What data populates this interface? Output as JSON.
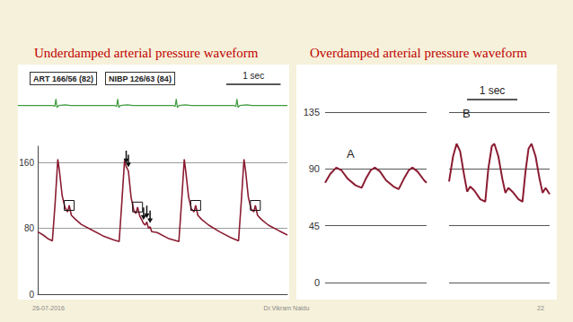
{
  "footer": {
    "date": "26-07-2016",
    "author": "Dr.Vikram Naidu",
    "page": "22"
  },
  "chart_data": [
    {
      "type": "line",
      "title": "Underdamped arterial pressure waveform",
      "annotations": [
        "ART 166/56 (82)",
        "NIBP 126/63 (84)",
        "1 sec"
      ],
      "x": [
        0,
        0.1,
        0.2,
        0.27,
        0.32,
        0.37,
        0.4,
        0.45,
        0.5,
        0.55,
        0.58,
        0.62,
        0.68,
        0.8,
        1.0,
        1.2,
        1.4,
        1.5,
        1.55,
        1.6,
        1.63,
        1.67,
        1.72,
        1.77,
        1.81,
        1.84,
        1.88,
        1.92,
        1.95,
        1.98,
        2.01,
        2.04,
        2.07,
        2.1,
        2.2,
        2.4,
        2.6,
        2.65,
        2.7,
        2.73,
        2.78,
        2.83,
        2.88,
        2.91,
        2.95,
        3.02,
        3.15,
        3.35,
        3.55,
        3.7,
        3.75,
        3.8,
        3.83,
        3.88,
        3.93,
        3.98,
        4.01,
        4.05,
        4.12,
        4.25,
        4.45,
        4.6
      ],
      "values": [
        76,
        72,
        67,
        65,
        110,
        164,
        150,
        120,
        106,
        100,
        108,
        96,
        92,
        85,
        78,
        71,
        66,
        64,
        112,
        163,
        155,
        150,
        118,
        102,
        98,
        106,
        95,
        90,
        86,
        84,
        88,
        80,
        82,
        76,
        75,
        68,
        64,
        112,
        164,
        148,
        118,
        104,
        100,
        108,
        96,
        91,
        84,
        76,
        69,
        65,
        112,
        164,
        150,
        118,
        104,
        100,
        108,
        96,
        91,
        84,
        77,
        72
      ],
      "color": "#8b1c32",
      "boxed_x": [
        0.58,
        1.84,
        2.91,
        4.01
      ],
      "arrow_x": [
        1.63,
        1.67,
        1.95,
        2.01,
        2.07
      ],
      "xlim": [
        0,
        4.6
      ],
      "ylim": [
        0,
        180
      ],
      "yticks": [
        0,
        80,
        160
      ],
      "grid": true,
      "tick_labels": "y"
    },
    {
      "type": "line",
      "x": [
        -0.37,
        0.28,
        0.31,
        0.33,
        0.35,
        0.38,
        0.5,
        0.6,
        1.42,
        1.45,
        1.47,
        1.49,
        1.52,
        1.65,
        1.75,
        2.5,
        2.53,
        2.55,
        2.57,
        2.6,
        2.72,
        2.82,
        3.62,
        3.65,
        3.67,
        3.69,
        3.72,
        3.85,
        3.95,
        4.6
      ],
      "values": [
        0,
        0,
        -0.15,
        1,
        -0.3,
        0,
        0.1,
        0,
        0,
        -0.15,
        1,
        -0.3,
        0,
        0.1,
        0,
        0,
        -0.15,
        1,
        -0.3,
        0,
        0.1,
        0,
        0,
        -0.15,
        1,
        -0.3,
        0,
        0.1,
        0,
        0
      ],
      "color": "#3f9a3f",
      "xlim": [
        -0.37,
        4.6
      ],
      "ylim": [
        -1,
        2
      ],
      "tick_labels": false
    },
    {
      "type": "line",
      "title": "Overdamped arterial pressure waveform",
      "annotations": [
        "1 sec"
      ],
      "panels": [
        {
          "label": "A",
          "x": [
            0,
            0.1,
            0.22,
            0.32,
            0.45,
            0.6,
            0.72,
            0.8,
            0.9,
            0.98,
            1.08,
            1.2,
            1.35,
            1.45,
            1.55,
            1.65,
            1.72,
            1.82,
            1.95,
            2.0
          ],
          "values": [
            79,
            86,
            91,
            89,
            82,
            77,
            75,
            82,
            89,
            91,
            88,
            81,
            76,
            74,
            82,
            89,
            91,
            88,
            81,
            79
          ],
          "xlim": [
            0,
            2.0
          ]
        },
        {
          "label": "B",
          "x": [
            0,
            0.08,
            0.15,
            0.22,
            0.3,
            0.36,
            0.42,
            0.5,
            0.62,
            0.72,
            0.78,
            0.85,
            0.9,
            0.98,
            1.06,
            1.12,
            1.18,
            1.26,
            1.38,
            1.46,
            1.52,
            1.58,
            1.64,
            1.72,
            1.8,
            1.86,
            1.92,
            2.0
          ],
          "values": [
            80,
            100,
            110,
            104,
            85,
            72,
            76,
            73,
            66,
            64,
            90,
            108,
            110,
            100,
            82,
            71,
            75,
            72,
            66,
            64,
            88,
            106,
            110,
            100,
            82,
            71,
            75,
            70
          ],
          "xlim": [
            0,
            2.0
          ]
        }
      ],
      "color": "#8b1c32",
      "ylim": [
        0,
        135
      ],
      "yticks": [
        0,
        45,
        90,
        135
      ],
      "grid": true,
      "tick_labels": "y"
    }
  ]
}
